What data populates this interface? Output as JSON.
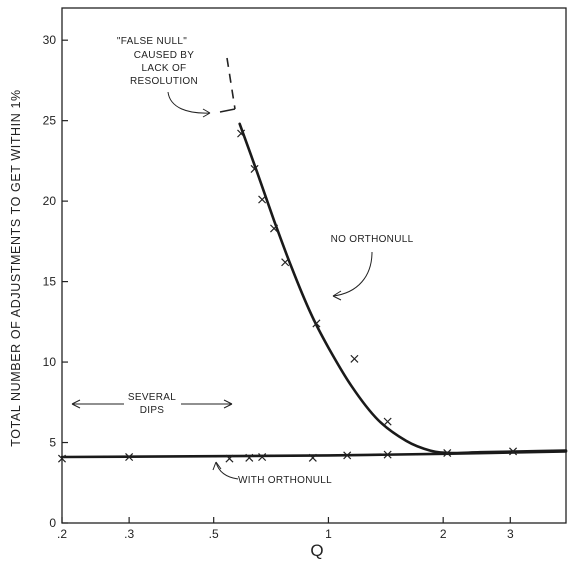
{
  "chart_data": {
    "type": "scatter",
    "title": "",
    "xlabel": "Q",
    "ylabel": "TOTAL NUMBER OF ADJUSTMENTS TO GET WITHIN 1%",
    "x_scale": "log",
    "xlim": [
      0.2,
      4.2
    ],
    "ylim": [
      0,
      32
    ],
    "x_ticks": [
      0.2,
      0.3,
      0.5,
      1,
      2,
      3
    ],
    "x_tick_labels": [
      ".2",
      ".3",
      ".5",
      "1",
      "2",
      "3"
    ],
    "y_ticks": [
      0,
      5,
      10,
      15,
      20,
      25,
      30
    ],
    "y_tick_labels": [
      "0",
      "5",
      "10",
      "15",
      "20",
      "25",
      "30"
    ],
    "grid": false,
    "series": [
      {
        "marker": "x",
        "x": [
          0.59,
          0.64,
          0.67,
          0.72,
          0.77,
          0.93,
          1.17,
          1.43
        ],
        "y": [
          24.2,
          22.0,
          20.1,
          18.3,
          16.2,
          12.4,
          10.2,
          6.3
        ]
      },
      {
        "marker": "x",
        "x": [
          0.2,
          0.3,
          0.55,
          0.62,
          0.67,
          0.91,
          1.12,
          1.43,
          2.05,
          3.05
        ],
        "y": [
          4.0,
          4.1,
          4.0,
          4.05,
          4.1,
          4.05,
          4.2,
          4.25,
          4.35,
          4.45
        ]
      }
    ],
    "curves": [
      {
        "x": [
          0.585,
          0.65,
          0.72,
          0.8,
          0.9,
          1.0,
          1.15,
          1.35,
          1.6,
          1.85,
          2.1,
          2.5,
          3.2,
          4.2
        ],
        "y": [
          24.8,
          21.8,
          18.8,
          15.9,
          13.0,
          10.9,
          8.5,
          6.4,
          5.1,
          4.5,
          4.35,
          4.4,
          4.45,
          4.5
        ]
      },
      {
        "x": [
          0.2,
          0.5,
          1.0,
          2.0,
          4.2
        ],
        "y": [
          4.1,
          4.15,
          4.2,
          4.3,
          4.45
        ]
      }
    ],
    "annotations": {
      "false_null": [
        "\"FALSE NULL\"",
        "CAUSED BY",
        "LACK OF",
        "RESOLUTION"
      ],
      "no_orthonull": "NO  ORTHONULL",
      "several_dips": [
        "SEVERAL",
        "DIPS"
      ],
      "with_orthonull": "WITH  ORTHONULL"
    }
  }
}
